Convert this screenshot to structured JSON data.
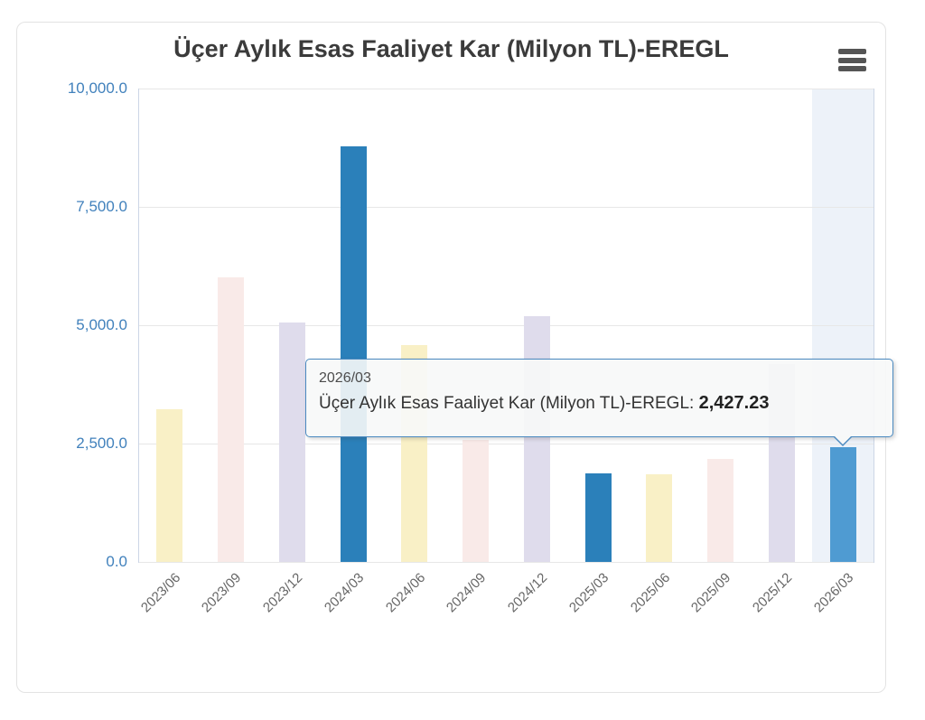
{
  "header": {
    "title": "Üçer Aylık Esas Faaliyet Kar (Milyon TL)-EREGL",
    "menu_icon": "hamburger-menu-icon"
  },
  "tooltip": {
    "header": "2026/03",
    "label": "Üçer Aylık Esas Faaliyet Kar (Milyon TL)-EREGL:",
    "value": "2,427.23"
  },
  "chart_data": {
    "type": "bar",
    "title": "Üçer Aylık Esas Faaliyet Kar (Milyon TL)-EREGL",
    "xlabel": "",
    "ylabel": "",
    "categories": [
      "2023/06",
      "2023/09",
      "2023/12",
      "2024/03",
      "2024/06",
      "2024/09",
      "2024/12",
      "2025/03",
      "2025/06",
      "2025/09",
      "2025/12",
      "2026/03"
    ],
    "values": [
      3225,
      6010,
      5060,
      8780,
      4580,
      2570,
      5190,
      1870,
      1860,
      2180,
      4180,
      2427.23
    ],
    "bar_colors": [
      "#f9f0c6",
      "#f9eae8",
      "#dfdcec",
      "#2b80ba",
      "#f9f0c6",
      "#f9eae8",
      "#dfdcec",
      "#2b80ba",
      "#f9f0c6",
      "#f9eae8",
      "#dfdcec",
      "#4f9bd2"
    ],
    "ylim": [
      0,
      10000
    ],
    "yticks": [
      0,
      2500,
      5000,
      7500,
      10000
    ],
    "ytick_labels": [
      "0.0",
      "2,500.0",
      "5,000.0",
      "7,500.0",
      "10,000.0"
    ],
    "grid": true,
    "legend": false,
    "x_label_rotation": -45,
    "hovered_index": 11,
    "hovered_category": "2026/03",
    "hovered_value": 2427.23,
    "hover_band_color": "#edf2f9"
  },
  "colors": {
    "title": "#3b3b3b",
    "menu_icon": "#555555",
    "y_axis_labels": "#4181bc",
    "x_axis_labels": "#666666",
    "gridline": "#e7e7e7",
    "axis_line": "#ccd6e6",
    "tooltip_border": "#4a89c0",
    "tooltip_background": "#f7f8f8",
    "card_border": "#e3e3e3"
  }
}
